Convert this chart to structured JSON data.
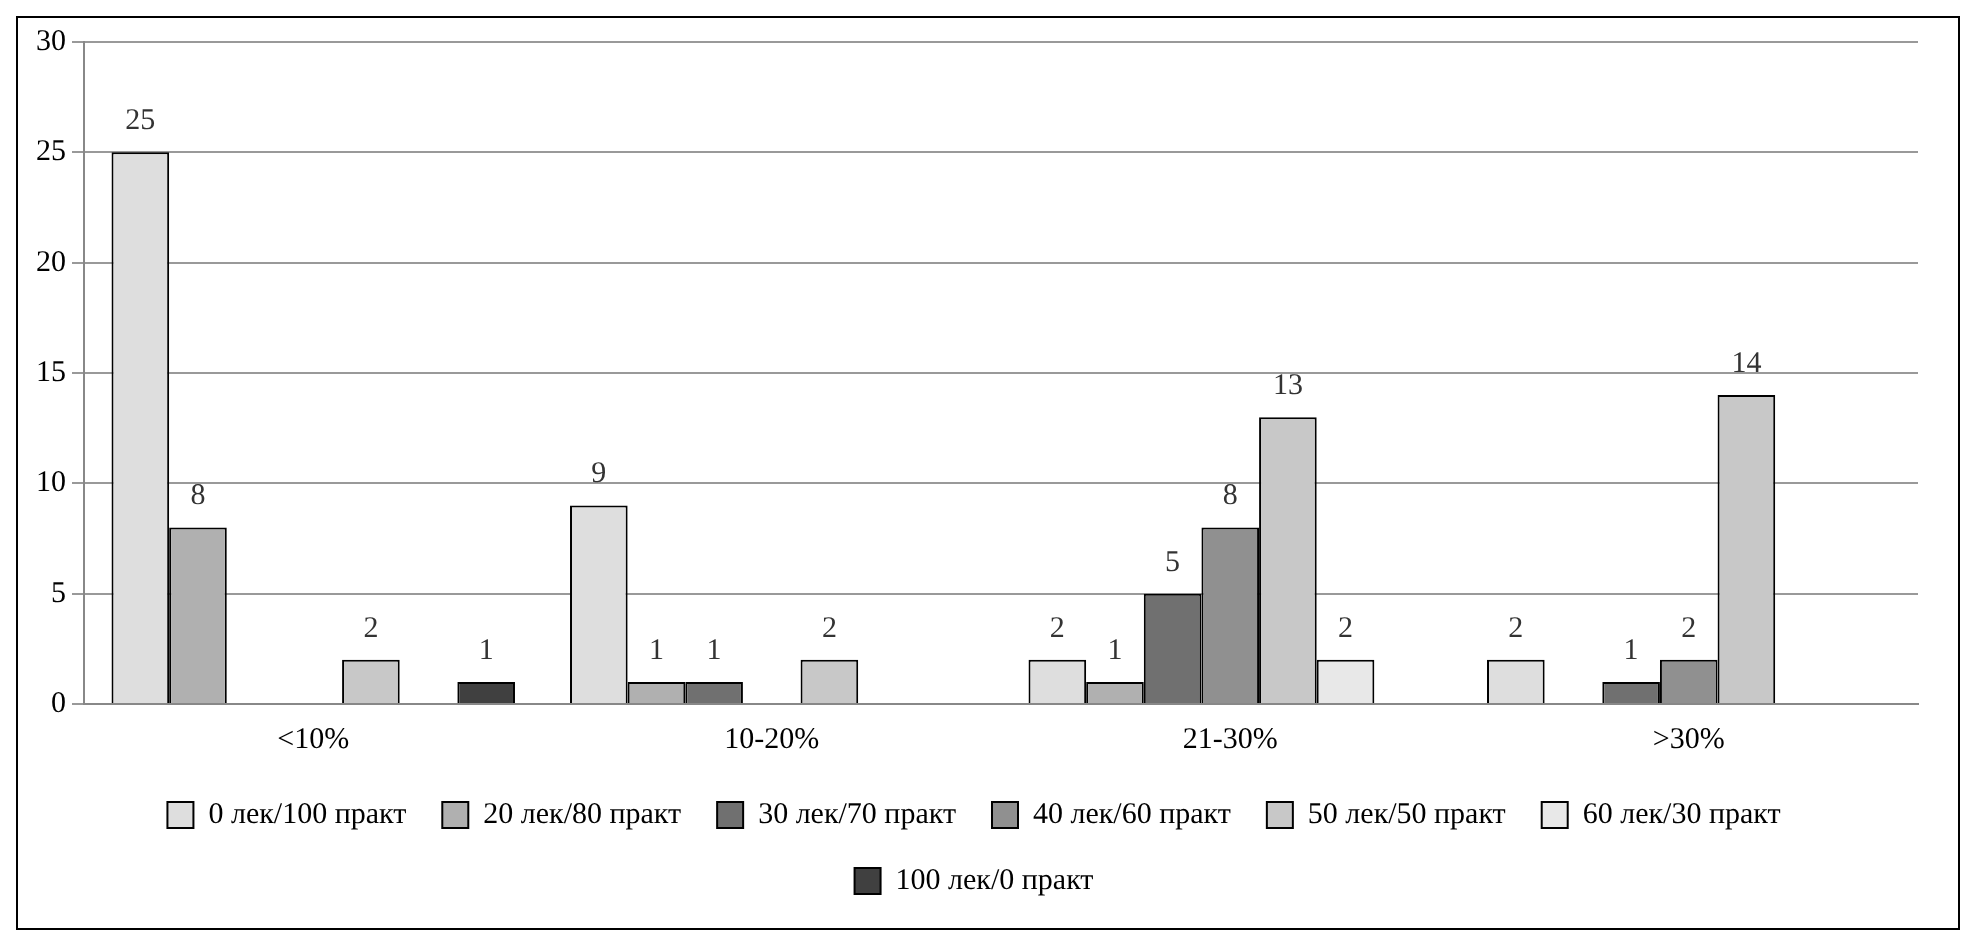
{
  "chart_data": {
    "type": "bar",
    "categories": [
      "<10%",
      "10-20%",
      "21-30%",
      ">30%"
    ],
    "series": [
      {
        "name": "0 лек/100 практ",
        "color": "#dedede",
        "values": [
          25,
          9,
          2,
          2
        ]
      },
      {
        "name": "20 лек/80 практ",
        "color": "#b0b0b0",
        "values": [
          8,
          1,
          1,
          null
        ]
      },
      {
        "name": "30 лек/70 практ",
        "color": "#707070",
        "values": [
          null,
          1,
          5,
          1
        ]
      },
      {
        "name": "40 лек/60 практ",
        "color": "#909090",
        "values": [
          null,
          null,
          8,
          2
        ]
      },
      {
        "name": "50 лек/50 практ",
        "color": "#c8c8c8",
        "values": [
          2,
          2,
          13,
          14
        ]
      },
      {
        "name": "60 лек/30 практ",
        "color": "#e8e8e8",
        "values": [
          null,
          null,
          2,
          null
        ]
      },
      {
        "name": "100 лек/0 практ",
        "color": "#404040",
        "values": [
          1,
          null,
          null,
          null
        ]
      }
    ],
    "ylim": [
      0,
      30
    ],
    "yticks": [
      0,
      5,
      10,
      15,
      20,
      25,
      30
    ],
    "grid": "y",
    "legend": "bottom",
    "data_labels": true
  }
}
